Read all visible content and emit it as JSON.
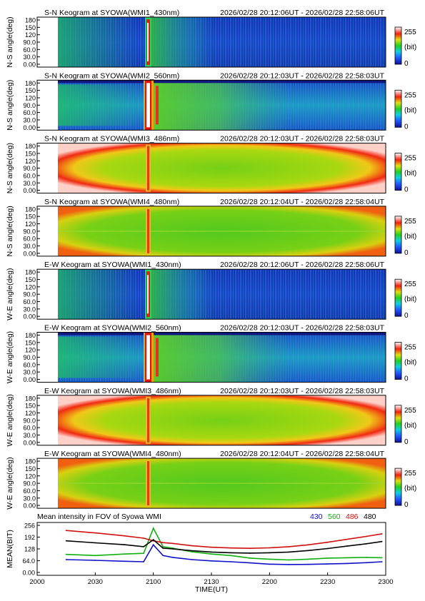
{
  "keograms": [
    {
      "title": "S-N Keogram at SYOWA(WMI1_430nm)",
      "time_range": "2026/02/28 20:12:06UT - 2026/02/28 22:58:06UT",
      "ylabel": "N-S angle(deg)",
      "yticks": [
        "180",
        "150",
        "120",
        "90.0",
        "60.0",
        "30.0",
        "0.00"
      ],
      "palette": "blue",
      "cbar": {
        "max": "255",
        "unit": "(bit)",
        "min": "0"
      }
    },
    {
      "title": "S-N Keogram at SYOWA(WMI2_560nm)",
      "time_range": "2026/02/28 20:12:03UT - 2026/02/28 22:58:03UT",
      "ylabel": "N-S angle(deg)",
      "yticks": [
        "180",
        "150",
        "120",
        "90.0",
        "60.0",
        "30.0",
        "0.00"
      ],
      "palette": "green",
      "cbar": {
        "max": "255",
        "unit": "(bit)",
        "min": "0"
      }
    },
    {
      "title": "S-N Keogram at SYOWA(WMI3_486nm)",
      "time_range": "2026/02/28 20:12:03UT - 2026/02/28 22:58:03UT",
      "ylabel": "N-S angle(deg)",
      "yticks": [
        "180",
        "150",
        "120",
        "90.0",
        "60.0",
        "30.0",
        "0.00"
      ],
      "palette": "red",
      "cbar": {
        "max": "255",
        "unit": "(bit)",
        "min": "0"
      }
    },
    {
      "title": "S-N Keogram at SYOWA(WMI4_480nm)",
      "time_range": "2026/02/28 20:12:04UT - 2026/02/28 22:58:04UT",
      "ylabel": "N-S angle(deg)",
      "yticks": [
        "180",
        "150",
        "120",
        "90.0",
        "60.0",
        "30.0",
        "0.00"
      ],
      "palette": "gy",
      "cbar": {
        "max": "255",
        "unit": "(bit)",
        "min": "0"
      }
    },
    {
      "title": "E-W Keogram at SYOWA(WMI1_430nm)",
      "time_range": "2026/02/28 20:12:06UT - 2026/02/28 22:58:06UT",
      "ylabel": "W-E angle(deg)",
      "yticks": [
        "180",
        "150",
        "120",
        "90.0",
        "60.0",
        "30.0",
        "0.00"
      ],
      "palette": "blue",
      "cbar": {
        "max": "255",
        "unit": "(bit)",
        "min": "0"
      }
    },
    {
      "title": "E-W Keogram at SYOWA(WMI2_560nm)",
      "time_range": "2026/02/28 20:12:03UT - 2026/02/28 22:58:03UT",
      "ylabel": "W-E angle(deg)",
      "yticks": [
        "180",
        "150",
        "120",
        "90.0",
        "60.0",
        "30.0",
        "0.00"
      ],
      "palette": "green",
      "cbar": {
        "max": "255",
        "unit": "(bit)",
        "min": "0"
      }
    },
    {
      "title": "E-W Keogram at SYOWA(WMI3_486nm)",
      "time_range": "2026/02/28 20:12:03UT - 2026/02/28 22:58:03UT",
      "ylabel": "W-E angle(deg)",
      "yticks": [
        "180",
        "150",
        "120",
        "90.0",
        "60.0",
        "30.0",
        "0.00"
      ],
      "palette": "red",
      "cbar": {
        "max": "255",
        "unit": "(bit)",
        "min": "0"
      }
    },
    {
      "title": "E-W Keogram at SYOWA(WMI4_480nm)",
      "time_range": "2026/02/28 20:12:04UT - 2026/02/28 22:58:04UT",
      "ylabel": "W-E angle(deg)",
      "yticks": [
        "180",
        "150",
        "120",
        "90.0",
        "60.0",
        "30.0",
        "0.00"
      ],
      "palette": "gy",
      "cbar": {
        "max": "255",
        "unit": "(bit)",
        "min": "0"
      }
    }
  ],
  "chart_data": {
    "type": "line",
    "title": "Mean intensity in FOV of Syowa WMI",
    "xlabel": "TIME(UT)",
    "ylabel": "MEAN(BIT)",
    "x_ticks": [
      "2000",
      "2030",
      "2100",
      "2130",
      "2200",
      "2230",
      "2300"
    ],
    "y_ticks": [
      "256",
      "192",
      "128",
      "64.0",
      "0.00"
    ],
    "ylim": [
      0,
      256
    ],
    "grid": false,
    "legend_position": "top-right",
    "x": [
      "20:15",
      "20:30",
      "20:45",
      "20:55",
      "21:00",
      "21:05",
      "21:10",
      "21:20",
      "21:30",
      "21:40",
      "21:50",
      "22:00",
      "22:10",
      "22:20",
      "22:30",
      "22:40",
      "22:50",
      "22:58"
    ],
    "series": [
      {
        "name": "430",
        "color": "#1010c8",
        "values": [
          70,
          66,
          61,
          58,
          150,
          92,
          82,
          70,
          63,
          58,
          52,
          45,
          43,
          44,
          46,
          49,
          53,
          58
        ]
      },
      {
        "name": "560",
        "color": "#10b010",
        "values": [
          98,
          92,
          100,
          104,
          240,
          140,
          132,
          112,
          100,
          92,
          78,
          72,
          68,
          72,
          78,
          80,
          82,
          80
        ]
      },
      {
        "name": "486",
        "color": "#d01010",
        "values": [
          228,
          215,
          199,
          186,
          172,
          162,
          158,
          145,
          137,
          133,
          131,
          134,
          140,
          150,
          164,
          180,
          196,
          210
        ]
      },
      {
        "name": "480",
        "color": "#000000",
        "values": [
          172,
          161,
          151,
          140,
          178,
          132,
          128,
          118,
          111,
          107,
          105,
          107,
          111,
          119,
          130,
          143,
          156,
          168
        ]
      }
    ]
  }
}
